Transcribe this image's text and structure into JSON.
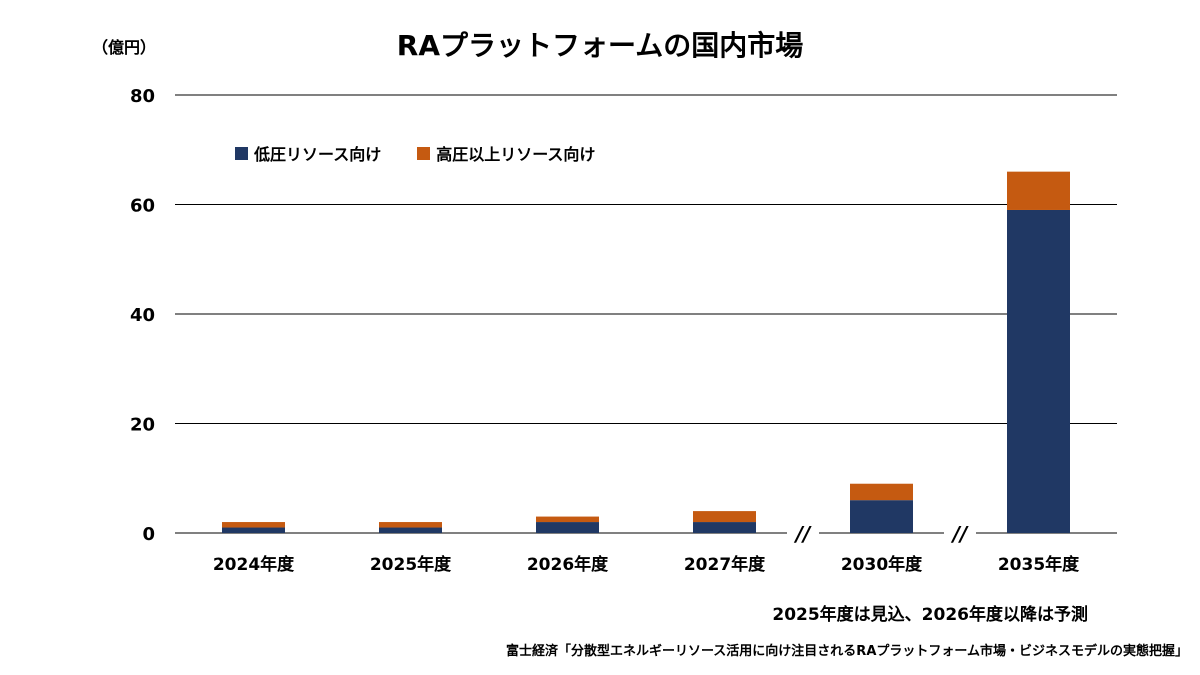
{
  "unit_label": "（億円）",
  "footnote": "2025年度は見込、2026年度以降は予測",
  "source": "富士経済「分散型エネルギーリソース活用に向け注目されるRAプラットフォーム市場・ビジネスモデルの実態把握」",
  "axis_break_marker": "//",
  "colors": {
    "low": "#203864",
    "high": "#C55A11",
    "grid": "#000000"
  },
  "chart_data": {
    "type": "bar",
    "stacked": true,
    "title": "RAプラットフォームの国内市場",
    "xlabel": "",
    "ylabel": "（億円）",
    "categories": [
      "2024年度",
      "2025年度",
      "2026年度",
      "2027年度",
      "2030年度",
      "2035年度"
    ],
    "series": [
      {
        "name": "低圧リソース向け",
        "values": [
          1,
          1,
          2,
          2,
          6,
          59
        ]
      },
      {
        "name": "高圧以上リソース向け",
        "values": [
          1,
          1,
          1,
          2,
          3,
          7
        ]
      }
    ],
    "ylim": [
      0,
      80
    ],
    "yticks": [
      0,
      20,
      40,
      60,
      80
    ],
    "grid": true,
    "legend_position": "top-left",
    "axis_breaks_after": [
      "2027年度",
      "2030年度"
    ]
  }
}
